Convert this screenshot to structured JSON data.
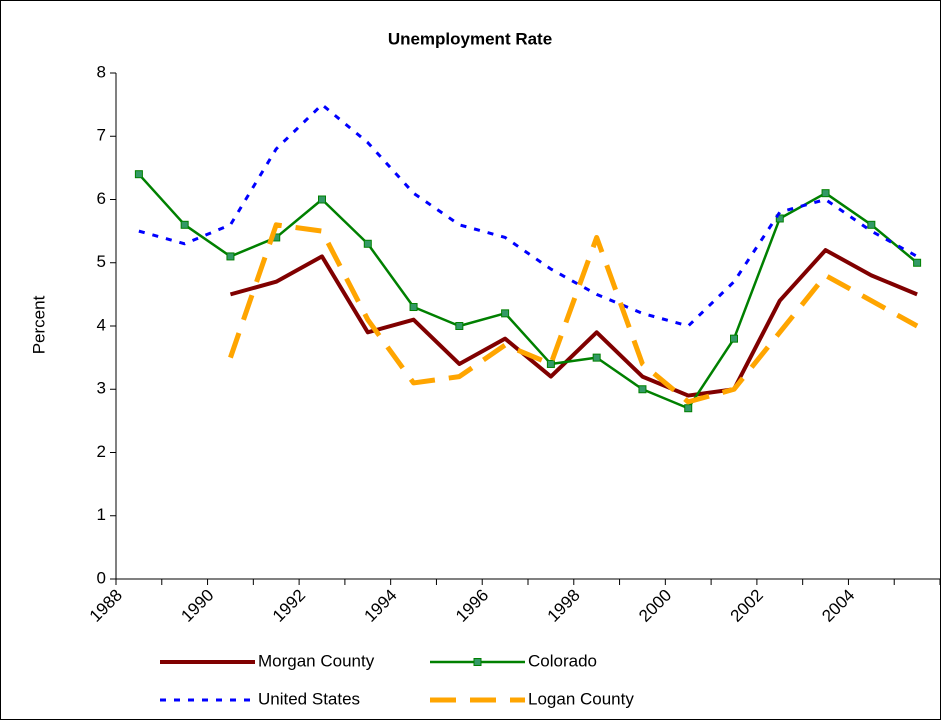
{
  "chart_data": {
    "type": "line",
    "title": "Unemployment Rate",
    "ylabel": "Percent",
    "categories": [
      "1988",
      null,
      "1990",
      null,
      "1992",
      null,
      "1994",
      null,
      "1996",
      null,
      "1998",
      null,
      "2000",
      null,
      "2002",
      null,
      "2004",
      null
    ],
    "series": [
      {
        "name": "Morgan County",
        "color": "#800000",
        "style": "solid",
        "values": [
          null,
          null,
          4.5,
          4.7,
          5.1,
          3.9,
          4.1,
          3.4,
          3.8,
          3.2,
          3.9,
          3.2,
          2.9,
          3.0,
          4.4,
          5.2,
          4.8,
          4.5
        ]
      },
      {
        "name": "Colorado",
        "color": "#008000",
        "style": "solid",
        "marker": "square",
        "values": [
          6.4,
          5.6,
          5.1,
          5.4,
          6.0,
          5.3,
          4.3,
          4.0,
          4.2,
          3.4,
          3.5,
          3.0,
          2.7,
          3.8,
          5.7,
          6.1,
          5.6,
          5.0
        ]
      },
      {
        "name": "United States",
        "color": "#0000ff",
        "style": "dashed",
        "values": [
          5.5,
          5.3,
          5.6,
          6.8,
          7.5,
          6.9,
          6.1,
          5.6,
          5.4,
          4.9,
          4.5,
          4.2,
          4.0,
          4.7,
          5.8,
          6.0,
          5.5,
          5.1
        ]
      },
      {
        "name": "Logan County",
        "color": "#ffa500",
        "style": "long-dash",
        "values": [
          null,
          null,
          3.5,
          5.6,
          5.5,
          4.1,
          3.1,
          3.2,
          3.7,
          3.4,
          5.4,
          3.4,
          2.8,
          3.0,
          3.9,
          4.8,
          4.4,
          4.0
        ]
      }
    ],
    "ylim": [
      0,
      8
    ],
    "yticks": [
      0,
      1,
      2,
      3,
      4,
      5,
      6,
      7,
      8
    ],
    "grid": false,
    "legend": "bottom"
  }
}
